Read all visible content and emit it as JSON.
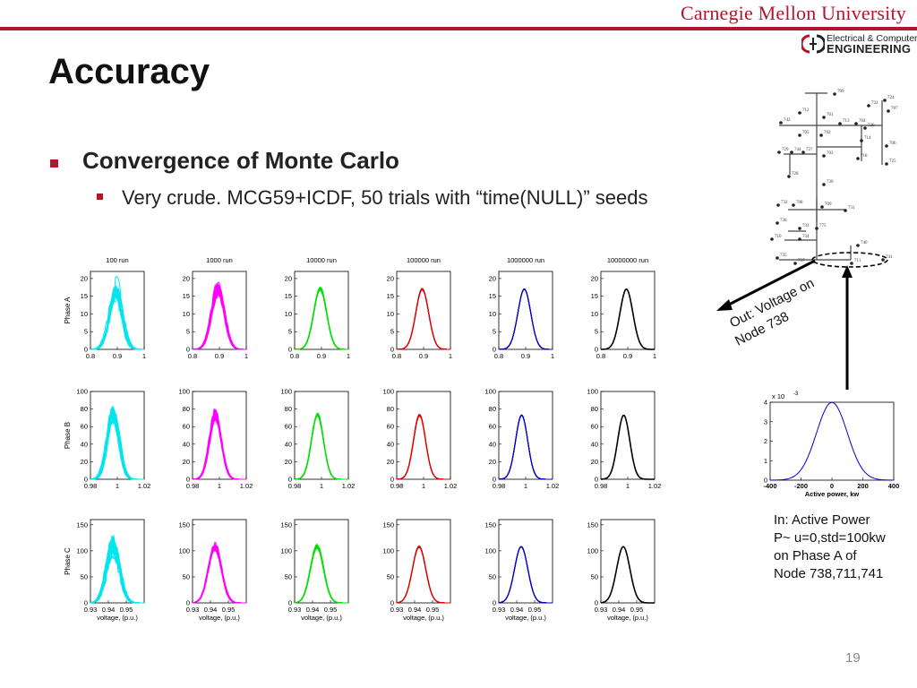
{
  "header": {
    "university": "Carnegie Mellon University",
    "dept_line1": "Electrical & Computer",
    "dept_line2": "ENGINEERING"
  },
  "slide": {
    "title": "Accuracy",
    "bullet1": "Convergence of Monte Carlo",
    "bullet2": "Very crude. MCG59+ICDF, 50 trials with “time(NULL)” seeds",
    "arrow_out_label_line1": "Out: Voltage on",
    "arrow_out_label_line2": "Node 738",
    "input_label": [
      "In: Active Power",
      "P~ u=0,std=100kw",
      "on Phase A of",
      "Node 738,711,741"
    ],
    "page_number": "19"
  },
  "feeder_nodes": [
    "799",
    "724",
    "722",
    "707",
    "712",
    "701",
    "713",
    "704",
    "742",
    "720",
    "705",
    "702",
    "714",
    "706",
    "729",
    "744",
    "727",
    "703",
    "718",
    "725",
    "728",
    "730",
    "732",
    "708",
    "709",
    "731",
    "736",
    "733",
    "775",
    "710",
    "734",
    "740",
    "735",
    "737",
    "711",
    "741"
  ],
  "colors": {
    "brand_red": "#b0172e",
    "cyan": "#00e5ee",
    "magenta": "#ff00ff",
    "green": "#00e000",
    "red": "#e00000",
    "blue": "#0000cc",
    "black": "#000000"
  },
  "chart_data": [
    {
      "type": "line",
      "description_rows": [
        "Phase A",
        "Phase B",
        "Phase C"
      ],
      "column_titles": [
        "100 run",
        "1000 run",
        "10000 run",
        "100000 run",
        "1000000 run",
        "10000000 run"
      ],
      "column_colors": [
        "#00e5ee",
        "#ff00ff",
        "#00e000",
        "#e00000",
        "#0000cc",
        "#000000"
      ],
      "rows": [
        {
          "ylabel": "Phase A",
          "xlabel": "",
          "yticks": [
            "0",
            "5",
            "10",
            "15",
            "20"
          ],
          "ylim": [
            0,
            22
          ],
          "xticks": [
            "0.8",
            "0.9",
            "1"
          ],
          "xlim": [
            0.8,
            1.0
          ],
          "mean": 0.895,
          "std": 0.024,
          "peak": 17,
          "noise_by_column": [
            0.45,
            0.25,
            0.08,
            0.03,
            0.01,
            0
          ]
        },
        {
          "ylabel": "Phase B",
          "xlabel": "",
          "yticks": [
            "0",
            "20",
            "40",
            "60",
            "80",
            "100"
          ],
          "ylim": [
            0,
            100
          ],
          "xticks": [
            "0.98",
            "1",
            "1.02"
          ],
          "xlim": [
            0.98,
            1.02
          ],
          "mean": 0.997,
          "std": 0.0045,
          "peak": 73,
          "noise_by_column": [
            0.4,
            0.2,
            0.07,
            0.03,
            0.01,
            0
          ]
        },
        {
          "ylabel": "Phase C",
          "xlabel": "voltage, (p.u.)",
          "yticks": [
            "0",
            "50",
            "100",
            "150"
          ],
          "ylim": [
            0,
            160
          ],
          "xticks": [
            "0.93",
            "0.94",
            "0.95"
          ],
          "xlim": [
            0.93,
            0.96
          ],
          "mean": 0.9425,
          "std": 0.0037,
          "peak": 108,
          "noise_by_column": [
            0.4,
            0.2,
            0.08,
            0.03,
            0.01,
            0
          ]
        }
      ]
    },
    {
      "type": "line",
      "title": "",
      "xlabel": "Active power, kw",
      "ylabel": "",
      "y_exponent_label": "x 10",
      "y_exponent": "-3",
      "xlim": [
        -400,
        400
      ],
      "ylim": [
        0,
        4
      ],
      "xticks": [
        "-400",
        "-200",
        "0",
        "200",
        "400"
      ],
      "yticks": [
        "0",
        "1",
        "2",
        "3",
        "4"
      ],
      "series": [
        {
          "mean": 0,
          "std": 100,
          "color": "#0000cc"
        }
      ]
    }
  ]
}
